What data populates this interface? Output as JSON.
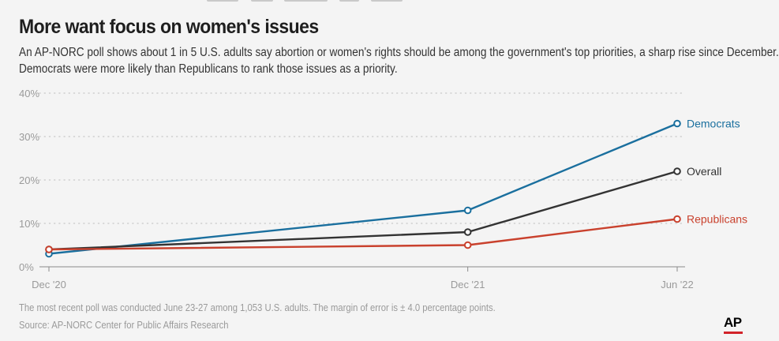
{
  "title": "More want focus on women's issues",
  "subtitle_lines": [
    "An AP-NORC poll shows about 1 in 5 U.S. adults say abortion or women's rights should be among the government's top priorities, a sharp rise since December.",
    "Democrats were more likely than Republicans to rank those issues as a priority."
  ],
  "note": "The most recent poll was conducted June 23-27 among 1,053 U.S. adults. The margin of error is ± 4.0 percentage points.",
  "source": "Source: AP-NORC Center for Public Affairs Research",
  "logo": "AP",
  "colors": {
    "democrats": "#1a6f9e",
    "overall": "#333333",
    "republicans": "#c9412d",
    "grid": "#c8c8c8",
    "axis_text": "#9a9a9a",
    "background": "#f4f4f4"
  },
  "chart_data": {
    "type": "line",
    "x": [
      "Dec '20",
      "Dec '21",
      "Jun '22"
    ],
    "x_months": [
      0,
      12,
      18
    ],
    "ylim": [
      0,
      40
    ],
    "yticks": [
      0,
      10,
      20,
      30,
      40
    ],
    "ytick_labels": [
      "0%",
      "10%",
      "20%",
      "30%",
      "40%"
    ],
    "grid": true,
    "xlabel": "",
    "ylabel": "",
    "series": [
      {
        "name": "Democrats",
        "key": "democrats",
        "values": [
          3,
          13,
          33
        ]
      },
      {
        "name": "Overall",
        "key": "overall",
        "values": [
          4,
          8,
          22
        ]
      },
      {
        "name": "Republicans",
        "key": "republicans",
        "values": [
          4,
          5,
          11
        ]
      }
    ]
  }
}
